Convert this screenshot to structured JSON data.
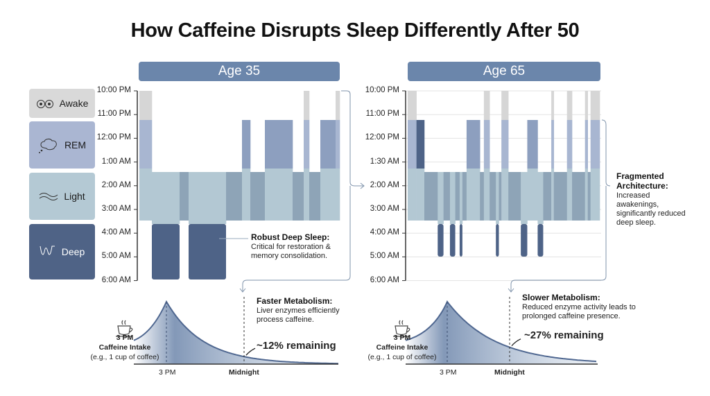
{
  "title": "How Caffeine Disrupts Sleep Differently After 50",
  "colors": {
    "awake": "#d6d6d6",
    "rem": "#8d9fbf",
    "rem_band": "#a8b6d1",
    "light": "#b3c8d3",
    "light_dark": "#8ea4b7",
    "deep": "#4e6387",
    "header": "#6b86ab"
  },
  "legend": [
    {
      "label": "Awake",
      "icon": "eyes-icon"
    },
    {
      "label": "REM",
      "icon": "brain-icon"
    },
    {
      "label": "Light",
      "icon": "wave-icon"
    },
    {
      "label": "Deep",
      "icon": "deep-wave-icon"
    }
  ],
  "panels": [
    {
      "header": "Age 35",
      "y_labels": [
        "10:00 PM",
        "11:00 PM",
        "12:00 PM",
        "1:00 AM",
        "2:00 AM",
        "3:00 AM",
        "4:00 AM",
        "5:00 AM",
        "6:00 AM"
      ],
      "deep_until": "6:00 AM",
      "gridlines": false,
      "segments": [
        {
          "stage": "awake",
          "weight": 18
        },
        {
          "stage": "deep",
          "weight": 40
        },
        {
          "stage": "light",
          "weight": 13
        },
        {
          "stage": "deep",
          "weight": 54
        },
        {
          "stage": "light",
          "weight": 23
        },
        {
          "stage": "rem",
          "weight": 12
        },
        {
          "stage": "light",
          "weight": 21
        },
        {
          "stage": "rem",
          "weight": 40
        },
        {
          "stage": "light",
          "weight": 16
        },
        {
          "stage": "awake",
          "weight": 8
        },
        {
          "stage": "light",
          "weight": 16
        },
        {
          "stage": "rem",
          "weight": 22
        },
        {
          "stage": "awake",
          "weight": 6
        }
      ],
      "callout": {
        "title": "Robust Deep Sleep:",
        "text": "Critical for restoration & memory consolidation."
      },
      "metabolism": {
        "title": "Faster Metabolism:",
        "text": "Liver enzymes efficiently process caffeine.",
        "remaining": "~12% remaining",
        "remaining_fraction": 0.12
      },
      "intake": {
        "time": "3 PM",
        "label": "Caffeine Intake",
        "note": "(e.g., 1 cup of coffee)"
      },
      "x_ticks": [
        "3 PM",
        "Midnight"
      ]
    },
    {
      "header": "Age 65",
      "y_labels": [
        "10:00 PM",
        "11:00 PM",
        "12:00 PM",
        "1:30 AM",
        "2:00 AM",
        "3:00 AM",
        "4:00 AM",
        "5:00 AM",
        "6:00 AM"
      ],
      "deep_until": "5:00 AM",
      "gridlines": true,
      "segments": [
        {
          "stage": "awake",
          "weight": 38
        },
        {
          "stage": "rem-dark",
          "weight": 34
        },
        {
          "stage": "light",
          "weight": 58
        },
        {
          "stage": "deep",
          "weight": 25
        },
        {
          "stage": "light",
          "weight": 28
        },
        {
          "stage": "deep",
          "weight": 23
        },
        {
          "stage": "light",
          "weight": 19
        },
        {
          "stage": "deep",
          "weight": 12
        },
        {
          "stage": "light",
          "weight": 18
        },
        {
          "stage": "rem",
          "weight": 58
        },
        {
          "stage": "light",
          "weight": 17
        },
        {
          "stage": "awake",
          "weight": 25
        },
        {
          "stage": "light",
          "weight": 27
        },
        {
          "stage": "deep",
          "weight": 13
        },
        {
          "stage": "light",
          "weight": 11
        },
        {
          "stage": "awake",
          "weight": 30
        },
        {
          "stage": "light",
          "weight": 54
        },
        {
          "stage": "deep",
          "weight": 28
        },
        {
          "stage": "rem",
          "weight": 45
        },
        {
          "stage": "deep",
          "weight": 24
        },
        {
          "stage": "light",
          "weight": 35
        },
        {
          "stage": "awake",
          "weight": 11
        },
        {
          "stage": "light",
          "weight": 57
        },
        {
          "stage": "awake",
          "weight": 22
        },
        {
          "stage": "light",
          "weight": 56
        },
        {
          "stage": "awake",
          "weight": 12
        },
        {
          "stage": "light",
          "weight": 12
        },
        {
          "stage": "awake",
          "weight": 40
        }
      ],
      "callout": {
        "title": "Fragmented Architecture:",
        "text": "Increased awakenings, significantly reduced deep sleep."
      },
      "metabolism": {
        "title": "Slower Metabolism:",
        "text": "Reduced enzyme activity leads to prolonged caffeine presence.",
        "remaining": "~27% remaining",
        "remaining_fraction": 0.27
      },
      "intake": {
        "time": "3 PM",
        "label": "Caffeine Intake",
        "note": "(e.g., 1 cup of coffee)"
      },
      "x_ticks": [
        "3 PM",
        "Midnight"
      ]
    }
  ]
}
